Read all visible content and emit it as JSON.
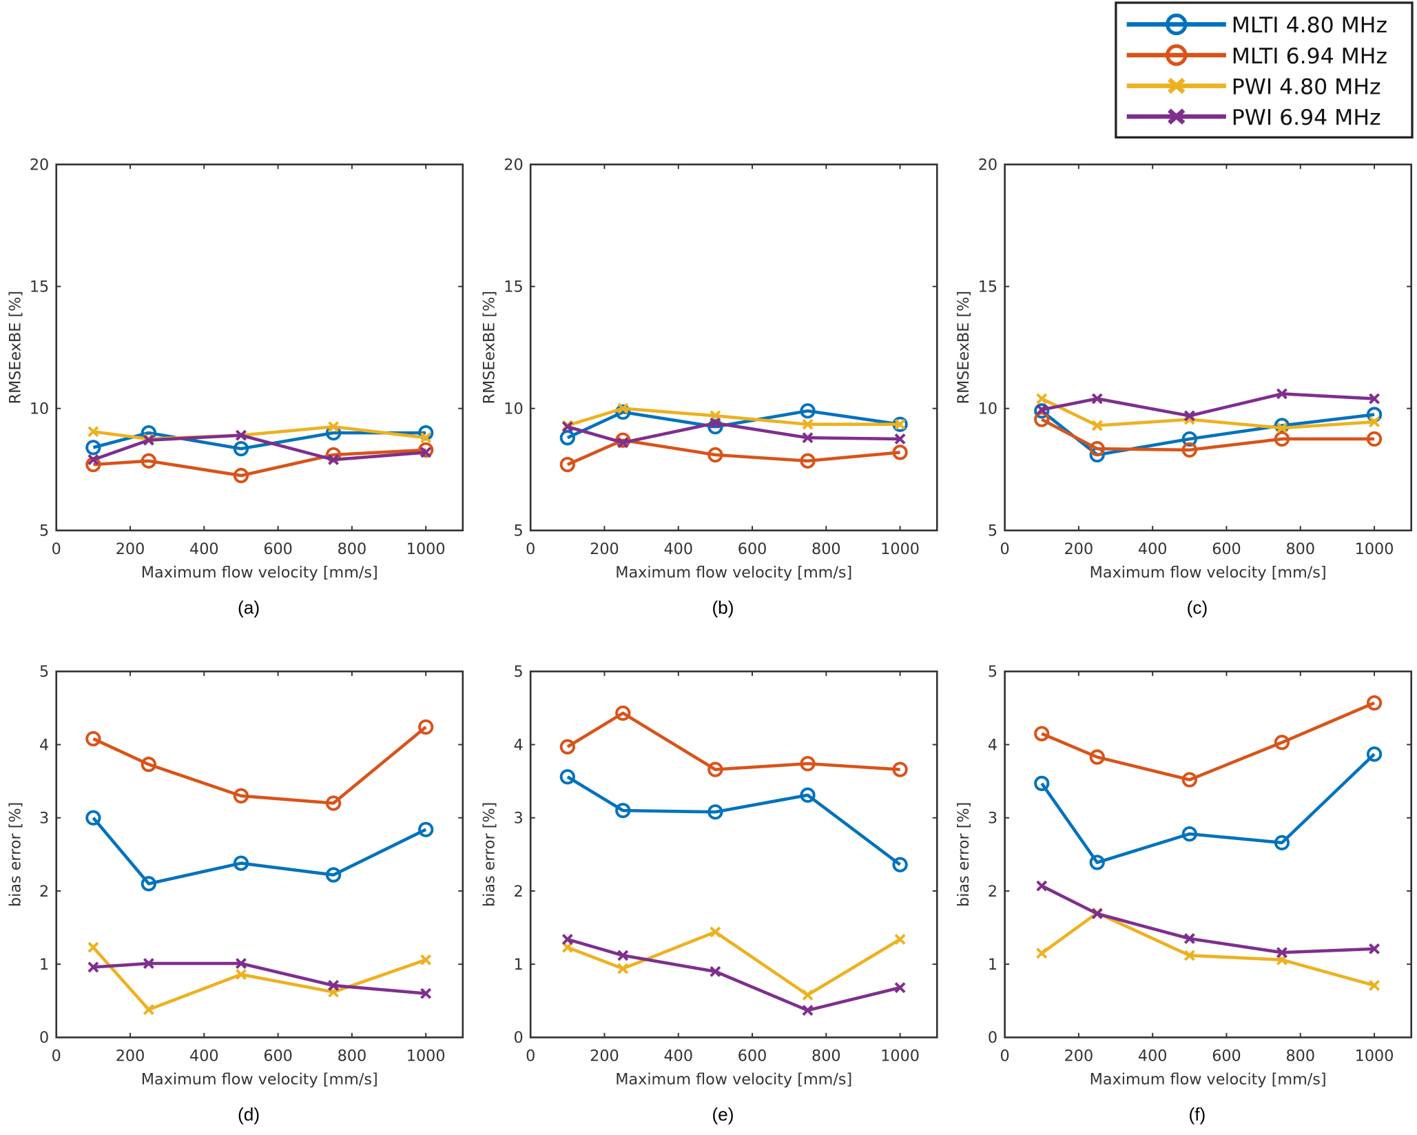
{
  "legend": {
    "placement": "top-right",
    "entries": [
      "MLTI 4.80 MHz",
      "MLTI 6.94 MHz",
      "PWI 4.80 MHz",
      "PWI 6.94 MHz"
    ]
  },
  "chart_data": [
    {
      "type": "line",
      "caption": "(a)",
      "xlabel": "Maximum flow velocity [mm/s]",
      "ylabel": "RMSEexBE [%]",
      "xlim": [
        0,
        1100
      ],
      "ylim": [
        5,
        20
      ],
      "xticks": [
        0,
        200,
        400,
        600,
        800,
        1000
      ],
      "yticks": [
        5,
        10,
        15,
        20
      ],
      "x": [
        100,
        250,
        500,
        750,
        1000
      ],
      "series": [
        {
          "name": "MLTI 4.80 MHz",
          "color": "#0072BD",
          "marker": "circle",
          "values": [
            8.4,
            9.0,
            8.35,
            9.0,
            9.0
          ]
        },
        {
          "name": "MLTI 6.94 MHz",
          "color": "#D95319",
          "marker": "circle",
          "values": [
            7.7,
            7.85,
            7.25,
            8.1,
            8.3
          ]
        },
        {
          "name": "PWI 4.80 MHz",
          "color": "#EDB120",
          "marker": "x",
          "values": [
            9.05,
            8.75,
            8.9,
            9.25,
            8.8
          ]
        },
        {
          "name": "PWI 6.94 MHz",
          "color": "#7E2F8E",
          "marker": "x",
          "values": [
            7.9,
            8.7,
            8.9,
            7.9,
            8.2
          ]
        }
      ]
    },
    {
      "type": "line",
      "caption": "(b)",
      "xlabel": "Maximum flow velocity [mm/s]",
      "ylabel": "RMSEexBE [%]",
      "xlim": [
        0,
        1100
      ],
      "ylim": [
        5,
        20
      ],
      "xticks": [
        0,
        200,
        400,
        600,
        800,
        1000
      ],
      "yticks": [
        5,
        10,
        15,
        20
      ],
      "x": [
        100,
        250,
        500,
        750,
        1000
      ],
      "series": [
        {
          "name": "MLTI 4.80 MHz",
          "color": "#0072BD",
          "marker": "circle",
          "values": [
            8.8,
            9.85,
            9.25,
            9.9,
            9.35
          ]
        },
        {
          "name": "MLTI 6.94 MHz",
          "color": "#D95319",
          "marker": "circle",
          "values": [
            7.7,
            8.7,
            8.1,
            7.85,
            8.2
          ]
        },
        {
          "name": "PWI 4.80 MHz",
          "color": "#EDB120",
          "marker": "x",
          "values": [
            9.3,
            10.0,
            9.7,
            9.35,
            9.35
          ]
        },
        {
          "name": "PWI 6.94 MHz",
          "color": "#7E2F8E",
          "marker": "x",
          "values": [
            9.25,
            8.6,
            9.4,
            8.8,
            8.75
          ]
        }
      ]
    },
    {
      "type": "line",
      "caption": "(c)",
      "xlabel": "Maximum flow velocity [mm/s]",
      "ylabel": "RMSEexBE [%]",
      "xlim": [
        0,
        1100
      ],
      "ylim": [
        5,
        20
      ],
      "xticks": [
        0,
        200,
        400,
        600,
        800,
        1000
      ],
      "yticks": [
        5,
        10,
        15,
        20
      ],
      "x": [
        100,
        250,
        500,
        750,
        1000
      ],
      "series": [
        {
          "name": "MLTI 4.80 MHz",
          "color": "#0072BD",
          "marker": "circle",
          "values": [
            9.9,
            8.1,
            8.75,
            9.3,
            9.75
          ]
        },
        {
          "name": "MLTI 6.94 MHz",
          "color": "#D95319",
          "marker": "circle",
          "values": [
            9.55,
            8.35,
            8.3,
            8.75,
            8.75
          ]
        },
        {
          "name": "PWI 4.80 MHz",
          "color": "#EDB120",
          "marker": "x",
          "values": [
            10.4,
            9.3,
            9.55,
            9.2,
            9.45
          ]
        },
        {
          "name": "PWI 6.94 MHz",
          "color": "#7E2F8E",
          "marker": "x",
          "values": [
            9.95,
            10.4,
            9.7,
            10.6,
            10.4
          ]
        }
      ]
    },
    {
      "type": "line",
      "caption": "(d)",
      "xlabel": "Maximum flow velocity [mm/s]",
      "ylabel": "bias error [%]",
      "xlim": [
        0,
        1100
      ],
      "ylim": [
        0,
        5
      ],
      "xticks": [
        0,
        200,
        400,
        600,
        800,
        1000
      ],
      "yticks": [
        0,
        1,
        2,
        3,
        4,
        5
      ],
      "x": [
        100,
        250,
        500,
        750,
        1000
      ],
      "series": [
        {
          "name": "MLTI 4.80 MHz",
          "color": "#0072BD",
          "marker": "circle",
          "values": [
            3.0,
            2.1,
            2.38,
            2.22,
            2.84
          ]
        },
        {
          "name": "MLTI 6.94 MHz",
          "color": "#D95319",
          "marker": "circle",
          "values": [
            4.08,
            3.73,
            3.3,
            3.2,
            4.24
          ]
        },
        {
          "name": "PWI 4.80 MHz",
          "color": "#EDB120",
          "marker": "x",
          "values": [
            1.23,
            0.38,
            0.86,
            0.62,
            1.06
          ]
        },
        {
          "name": "PWI 6.94 MHz",
          "color": "#7E2F8E",
          "marker": "x",
          "values": [
            0.96,
            1.01,
            1.01,
            0.71,
            0.6
          ]
        }
      ]
    },
    {
      "type": "line",
      "caption": "(e)",
      "xlabel": "Maximum flow velocity [mm/s]",
      "ylabel": "bias error [%]",
      "xlim": [
        0,
        1100
      ],
      "ylim": [
        0,
        5
      ],
      "xticks": [
        0,
        200,
        400,
        600,
        800,
        1000
      ],
      "yticks": [
        0,
        1,
        2,
        3,
        4,
        5
      ],
      "x": [
        100,
        250,
        500,
        750,
        1000
      ],
      "series": [
        {
          "name": "MLTI 4.80 MHz",
          "color": "#0072BD",
          "marker": "circle",
          "values": [
            3.56,
            3.1,
            3.08,
            3.31,
            2.36
          ]
        },
        {
          "name": "MLTI 6.94 MHz",
          "color": "#D95319",
          "marker": "circle",
          "values": [
            3.97,
            4.43,
            3.66,
            3.74,
            3.66
          ]
        },
        {
          "name": "PWI 4.80 MHz",
          "color": "#EDB120",
          "marker": "x",
          "values": [
            1.23,
            0.94,
            1.44,
            0.58,
            1.34
          ]
        },
        {
          "name": "PWI 6.94 MHz",
          "color": "#7E2F8E",
          "marker": "x",
          "values": [
            1.34,
            1.12,
            0.9,
            0.37,
            0.68
          ]
        }
      ]
    },
    {
      "type": "line",
      "caption": "(f)",
      "xlabel": "Maximum flow velocity [mm/s]",
      "ylabel": "bias error [%]",
      "xlim": [
        0,
        1100
      ],
      "ylim": [
        0,
        5
      ],
      "xticks": [
        0,
        200,
        400,
        600,
        800,
        1000
      ],
      "yticks": [
        0,
        1,
        2,
        3,
        4,
        5
      ],
      "x": [
        100,
        250,
        500,
        750,
        1000
      ],
      "series": [
        {
          "name": "MLTI 4.80 MHz",
          "color": "#0072BD",
          "marker": "circle",
          "values": [
            3.47,
            2.39,
            2.78,
            2.66,
            3.87
          ]
        },
        {
          "name": "MLTI 6.94 MHz",
          "color": "#D95319",
          "marker": "circle",
          "values": [
            4.15,
            3.83,
            3.52,
            4.03,
            4.57
          ]
        },
        {
          "name": "PWI 4.80 MHz",
          "color": "#EDB120",
          "marker": "x",
          "values": [
            1.15,
            1.7,
            1.12,
            1.06,
            0.71
          ]
        },
        {
          "name": "PWI 6.94 MHz",
          "color": "#7E2F8E",
          "marker": "x",
          "values": [
            2.07,
            1.69,
            1.35,
            1.16,
            1.21
          ]
        }
      ]
    }
  ]
}
